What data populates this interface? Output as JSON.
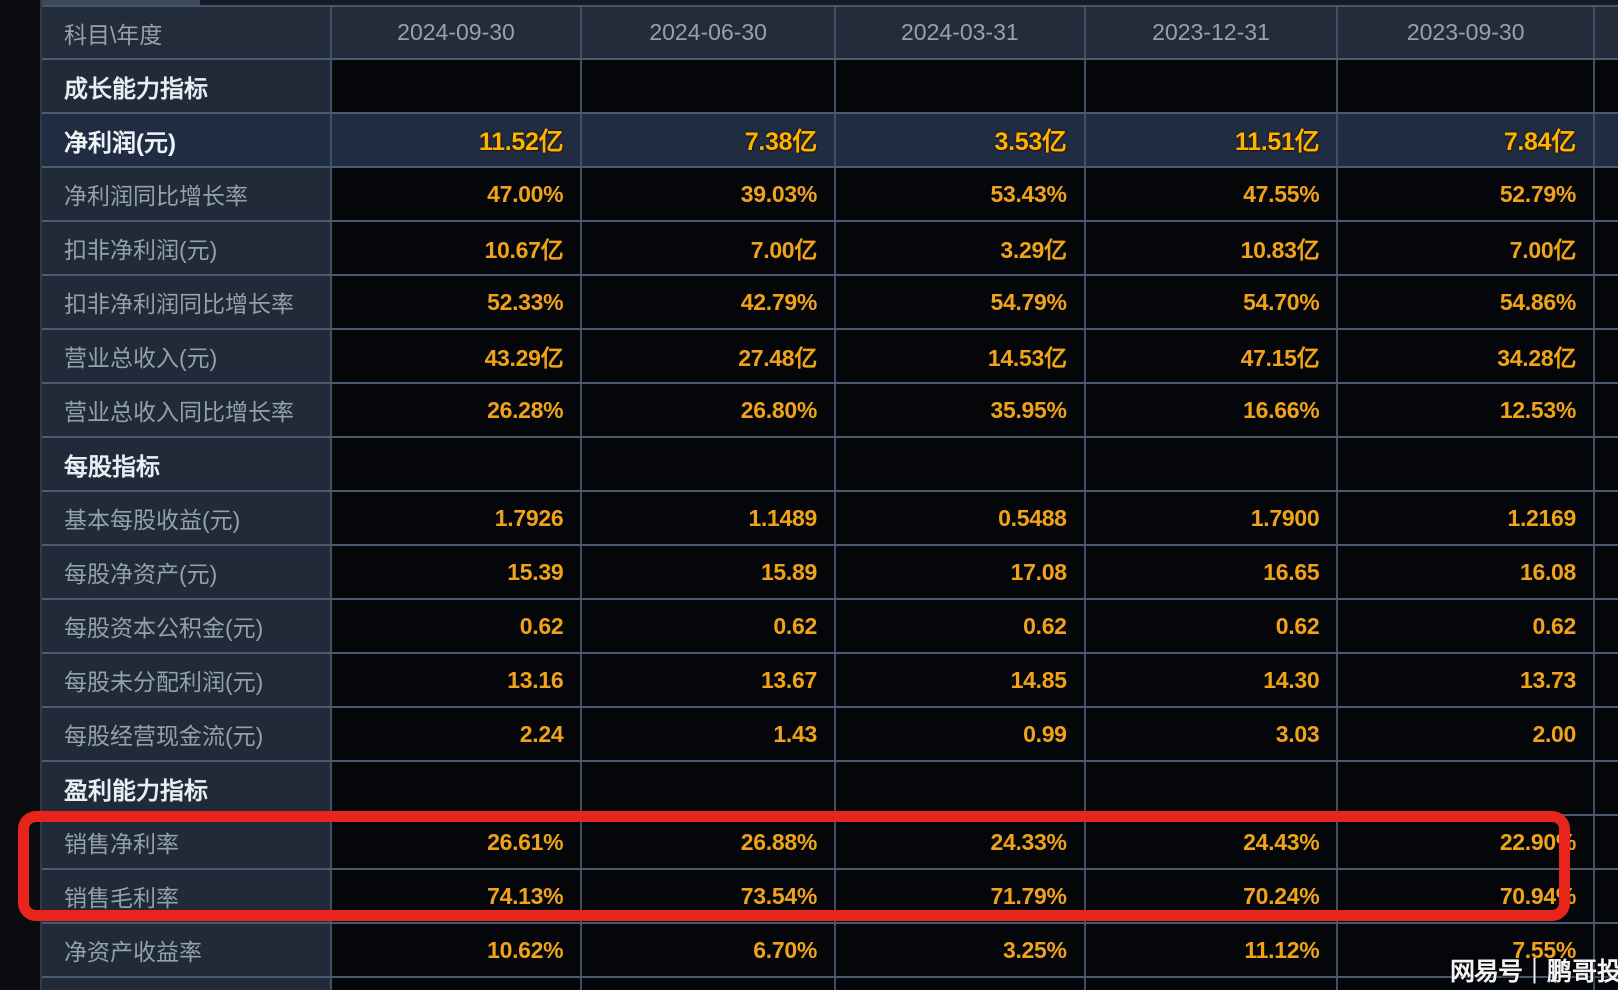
{
  "table": {
    "header": {
      "label": "科目\\年度",
      "dates": [
        "2024-09-30",
        "2024-06-30",
        "2024-03-31",
        "2023-12-31",
        "2023-09-30"
      ]
    },
    "rows": [
      {
        "type": "section",
        "label": "成长能力指标",
        "values": [
          "",
          "",
          "",
          "",
          ""
        ]
      },
      {
        "type": "highlight",
        "label": "净利润(元)",
        "values": [
          "11.52亿",
          "7.38亿",
          "3.53亿",
          "11.51亿",
          "7.84亿"
        ]
      },
      {
        "type": "data",
        "label": "净利润同比增长率",
        "values": [
          "47.00%",
          "39.03%",
          "53.43%",
          "47.55%",
          "52.79%"
        ]
      },
      {
        "type": "data",
        "label": "扣非净利润(元)",
        "values": [
          "10.67亿",
          "7.00亿",
          "3.29亿",
          "10.83亿",
          "7.00亿"
        ]
      },
      {
        "type": "data",
        "label": "扣非净利润同比增长率",
        "values": [
          "52.33%",
          "42.79%",
          "54.79%",
          "54.70%",
          "54.86%"
        ]
      },
      {
        "type": "data",
        "label": "营业总收入(元)",
        "values": [
          "43.29亿",
          "27.48亿",
          "14.53亿",
          "47.15亿",
          "34.28亿"
        ]
      },
      {
        "type": "data",
        "label": "营业总收入同比增长率",
        "values": [
          "26.28%",
          "26.80%",
          "35.95%",
          "16.66%",
          "12.53%"
        ]
      },
      {
        "type": "section",
        "label": "每股指标",
        "values": [
          "",
          "",
          "",
          "",
          ""
        ]
      },
      {
        "type": "data",
        "label": "基本每股收益(元)",
        "values": [
          "1.7926",
          "1.1489",
          "0.5488",
          "1.7900",
          "1.2169"
        ]
      },
      {
        "type": "data",
        "label": "每股净资产(元)",
        "values": [
          "15.39",
          "15.89",
          "17.08",
          "16.65",
          "16.08"
        ]
      },
      {
        "type": "data",
        "label": "每股资本公积金(元)",
        "values": [
          "0.62",
          "0.62",
          "0.62",
          "0.62",
          "0.62"
        ]
      },
      {
        "type": "data",
        "label": "每股未分配利润(元)",
        "values": [
          "13.16",
          "13.67",
          "14.85",
          "14.30",
          "13.73"
        ]
      },
      {
        "type": "data",
        "label": "每股经营现金流(元)",
        "values": [
          "2.24",
          "1.43",
          "0.99",
          "3.03",
          "2.00"
        ]
      },
      {
        "type": "section",
        "label": "盈利能力指标",
        "values": [
          "",
          "",
          "",
          "",
          ""
        ]
      },
      {
        "type": "data",
        "label": "销售净利率",
        "values": [
          "26.61%",
          "26.88%",
          "24.33%",
          "24.43%",
          "22.90%"
        ]
      },
      {
        "type": "data",
        "label": "销售毛利率",
        "values": [
          "74.13%",
          "73.54%",
          "71.79%",
          "70.24%",
          "70.94%"
        ]
      },
      {
        "type": "data",
        "label": "净资产收益率",
        "values": [
          "10.62%",
          "6.70%",
          "3.25%",
          "11.12%",
          "7.55%"
        ]
      }
    ]
  },
  "annotation": {
    "color": "#e7251d",
    "boxed_rows": [
      "销售净利率",
      "销售毛利率"
    ]
  },
  "watermark": {
    "logo": "网易号",
    "separator": "｜",
    "author": "鹏哥投研"
  },
  "colors": {
    "value_orange": "#f0a318",
    "highlight_orange": "#ffb200",
    "label_gray": "#93a0ad",
    "section_white": "#e8eef4",
    "cell_black": "#04060a",
    "panel_navy": "#202a38",
    "highlight_navy": "#202c42",
    "grid_line": "#4a5a70"
  }
}
